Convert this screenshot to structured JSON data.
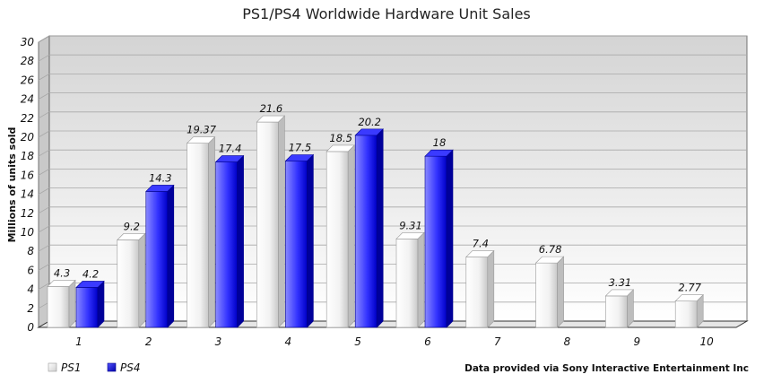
{
  "chart_data": {
    "type": "bar",
    "title": "PS1/PS4 Worldwide Hardware Unit Sales",
    "xlabel": "",
    "ylabel": "Millions of units sold",
    "ylim": [
      0,
      30
    ],
    "yticks": [
      0,
      2,
      4,
      6,
      8,
      10,
      12,
      14,
      16,
      18,
      20,
      22,
      24,
      26,
      28,
      30
    ],
    "categories": [
      "1",
      "2",
      "3",
      "4",
      "5",
      "6",
      "7",
      "8",
      "9",
      "10"
    ],
    "series": [
      {
        "name": "PS1",
        "color": "#ffffff",
        "values": [
          4.3,
          9.2,
          19.37,
          21.6,
          18.5,
          9.31,
          7.4,
          6.78,
          3.31,
          2.77
        ]
      },
      {
        "name": "PS4",
        "color": "#0000ee",
        "values": [
          4.2,
          14.3,
          17.4,
          17.5,
          20.2,
          18,
          null,
          null,
          null,
          null
        ]
      }
    ],
    "grid": true,
    "legend_position": "bottom-left",
    "source_note": "Data provided via Sony Interactive Entertainment Inc"
  }
}
